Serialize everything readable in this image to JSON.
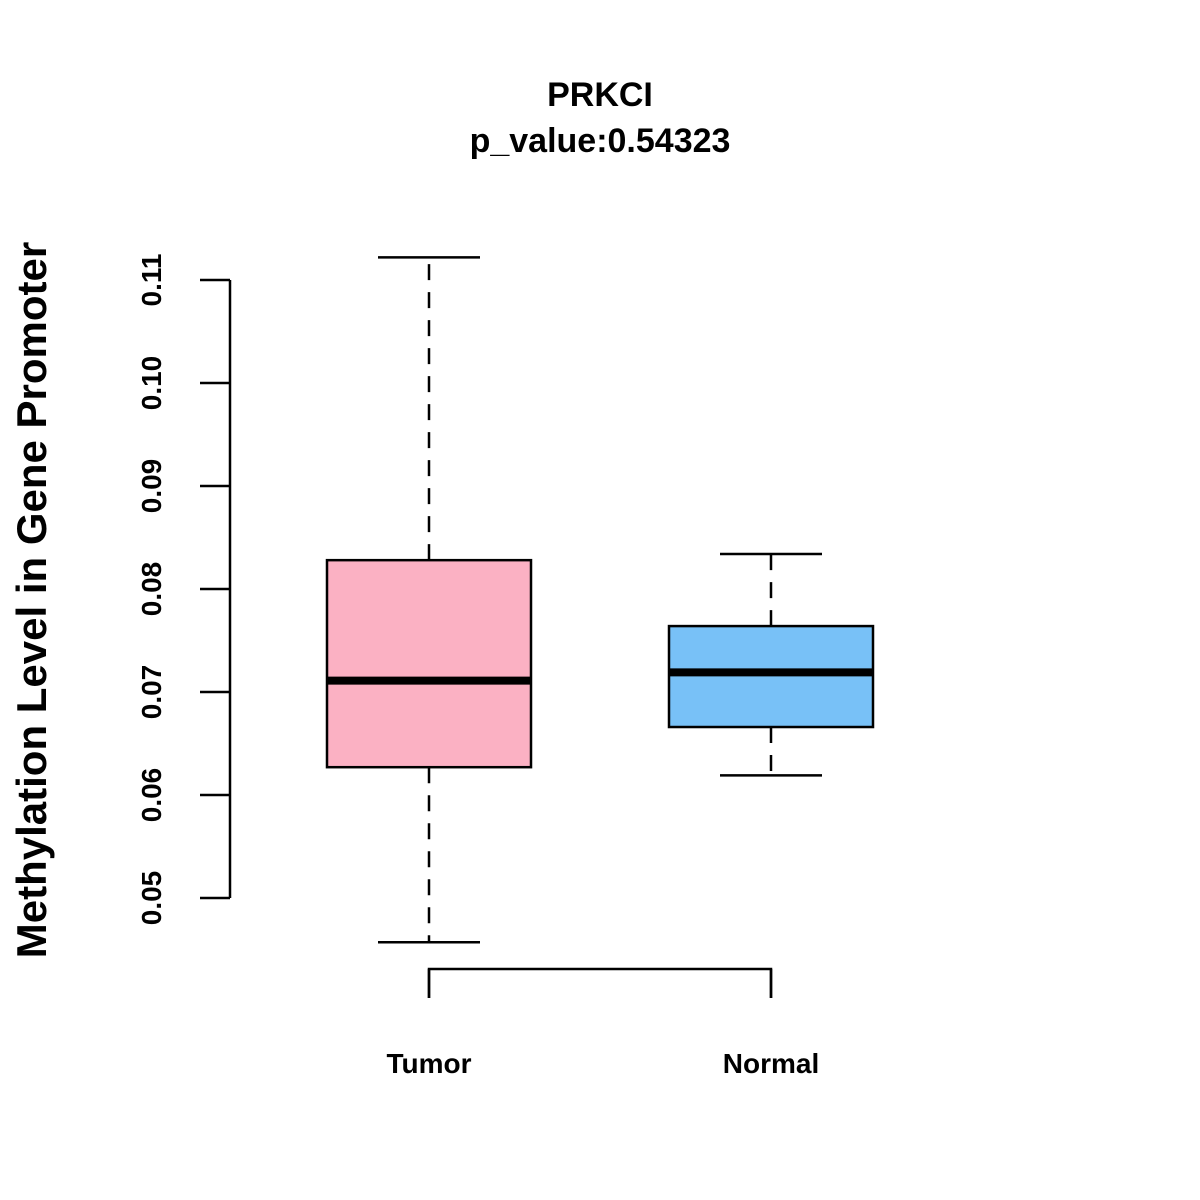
{
  "chart_data": {
    "type": "boxplot",
    "title": "PRKCI",
    "subtitle": "p_value:0.54323",
    "xlabel": "",
    "ylabel": "Methylation Level in Gene Promoter",
    "ylim": [
      0.05,
      0.11
    ],
    "yticks": [
      0.05,
      0.06,
      0.07,
      0.08,
      0.09,
      0.1,
      0.11
    ],
    "ytick_labels": [
      "0.05",
      "0.06",
      "0.07",
      "0.08",
      "0.09",
      "0.10",
      "0.11"
    ],
    "categories": [
      "Tumor",
      "Normal"
    ],
    "boxes": [
      {
        "name": "Tumor",
        "whisker_low": 0.0457,
        "q1": 0.0627,
        "median": 0.0711,
        "q3": 0.0828,
        "whisker_high": 0.1122,
        "color": "#FBB1C3"
      },
      {
        "name": "Normal",
        "whisker_low": 0.0619,
        "q1": 0.0666,
        "median": 0.0719,
        "q3": 0.0764,
        "whisker_high": 0.0834,
        "color": "#78C1F7"
      }
    ],
    "grid": false,
    "legend": "none"
  }
}
